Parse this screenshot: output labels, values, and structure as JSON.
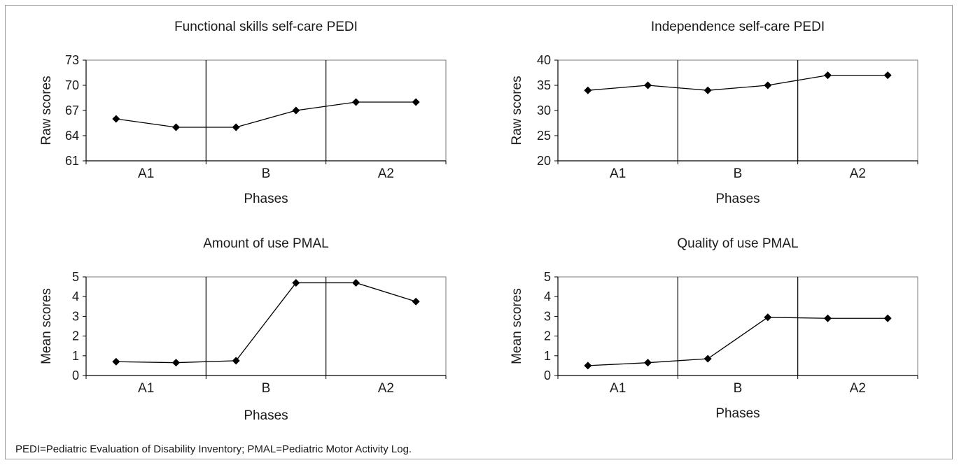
{
  "chart_data": [
    {
      "type": "line",
      "title": "Functional skills  self-care PEDI",
      "ylabel": "Raw scores",
      "xlabel": "Phases",
      "ylim": [
        61,
        73
      ],
      "yticks": [
        "61",
        "64",
        "67",
        "70",
        "73"
      ],
      "phases": [
        "A1",
        "B",
        "A2"
      ],
      "series": [
        {
          "values": [
            66,
            65,
            65,
            67,
            68,
            68
          ]
        }
      ]
    },
    {
      "type": "line",
      "title": "Independence self-care PEDI",
      "ylabel": "Raw scores",
      "xlabel": "Phases",
      "ylim": [
        20,
        40
      ],
      "yticks": [
        "20",
        "25",
        "30",
        "35",
        "40"
      ],
      "phases": [
        "A1",
        "B",
        "A2"
      ],
      "series": [
        {
          "values": [
            34,
            35,
            34,
            35,
            37,
            37
          ]
        }
      ]
    },
    {
      "type": "line",
      "title": "Amount of use PMAL",
      "ylabel": "Mean scores",
      "xlabel": "Phases",
      "ylim": [
        0,
        5
      ],
      "yticks": [
        "0",
        "1",
        "2",
        "3",
        "4",
        "5"
      ],
      "phases": [
        "A1",
        "B",
        "A2"
      ],
      "series": [
        {
          "values": [
            0.7,
            0.65,
            0.75,
            4.7,
            4.7,
            3.75
          ]
        }
      ]
    },
    {
      "type": "line",
      "title": "Quality of use PMAL",
      "ylabel": "Mean scores",
      "xlabel": "Phases",
      "ylim": [
        0,
        5
      ],
      "yticks": [
        "0",
        "1",
        "2",
        "3",
        "4",
        "5"
      ],
      "phases": [
        "A1",
        "B",
        "A2"
      ],
      "series": [
        {
          "values": [
            0.5,
            0.65,
            0.85,
            2.95,
            2.9,
            2.9
          ]
        }
      ]
    }
  ],
  "footnote": "PEDI=Pediatric Evaluation of Disability Inventory; PMAL=Pediatric Motor Activity Log.",
  "colors": {
    "line": "#000000",
    "axis": "#000000",
    "plot_border": "#7a7a7a",
    "frame": "#9a9a9a"
  }
}
